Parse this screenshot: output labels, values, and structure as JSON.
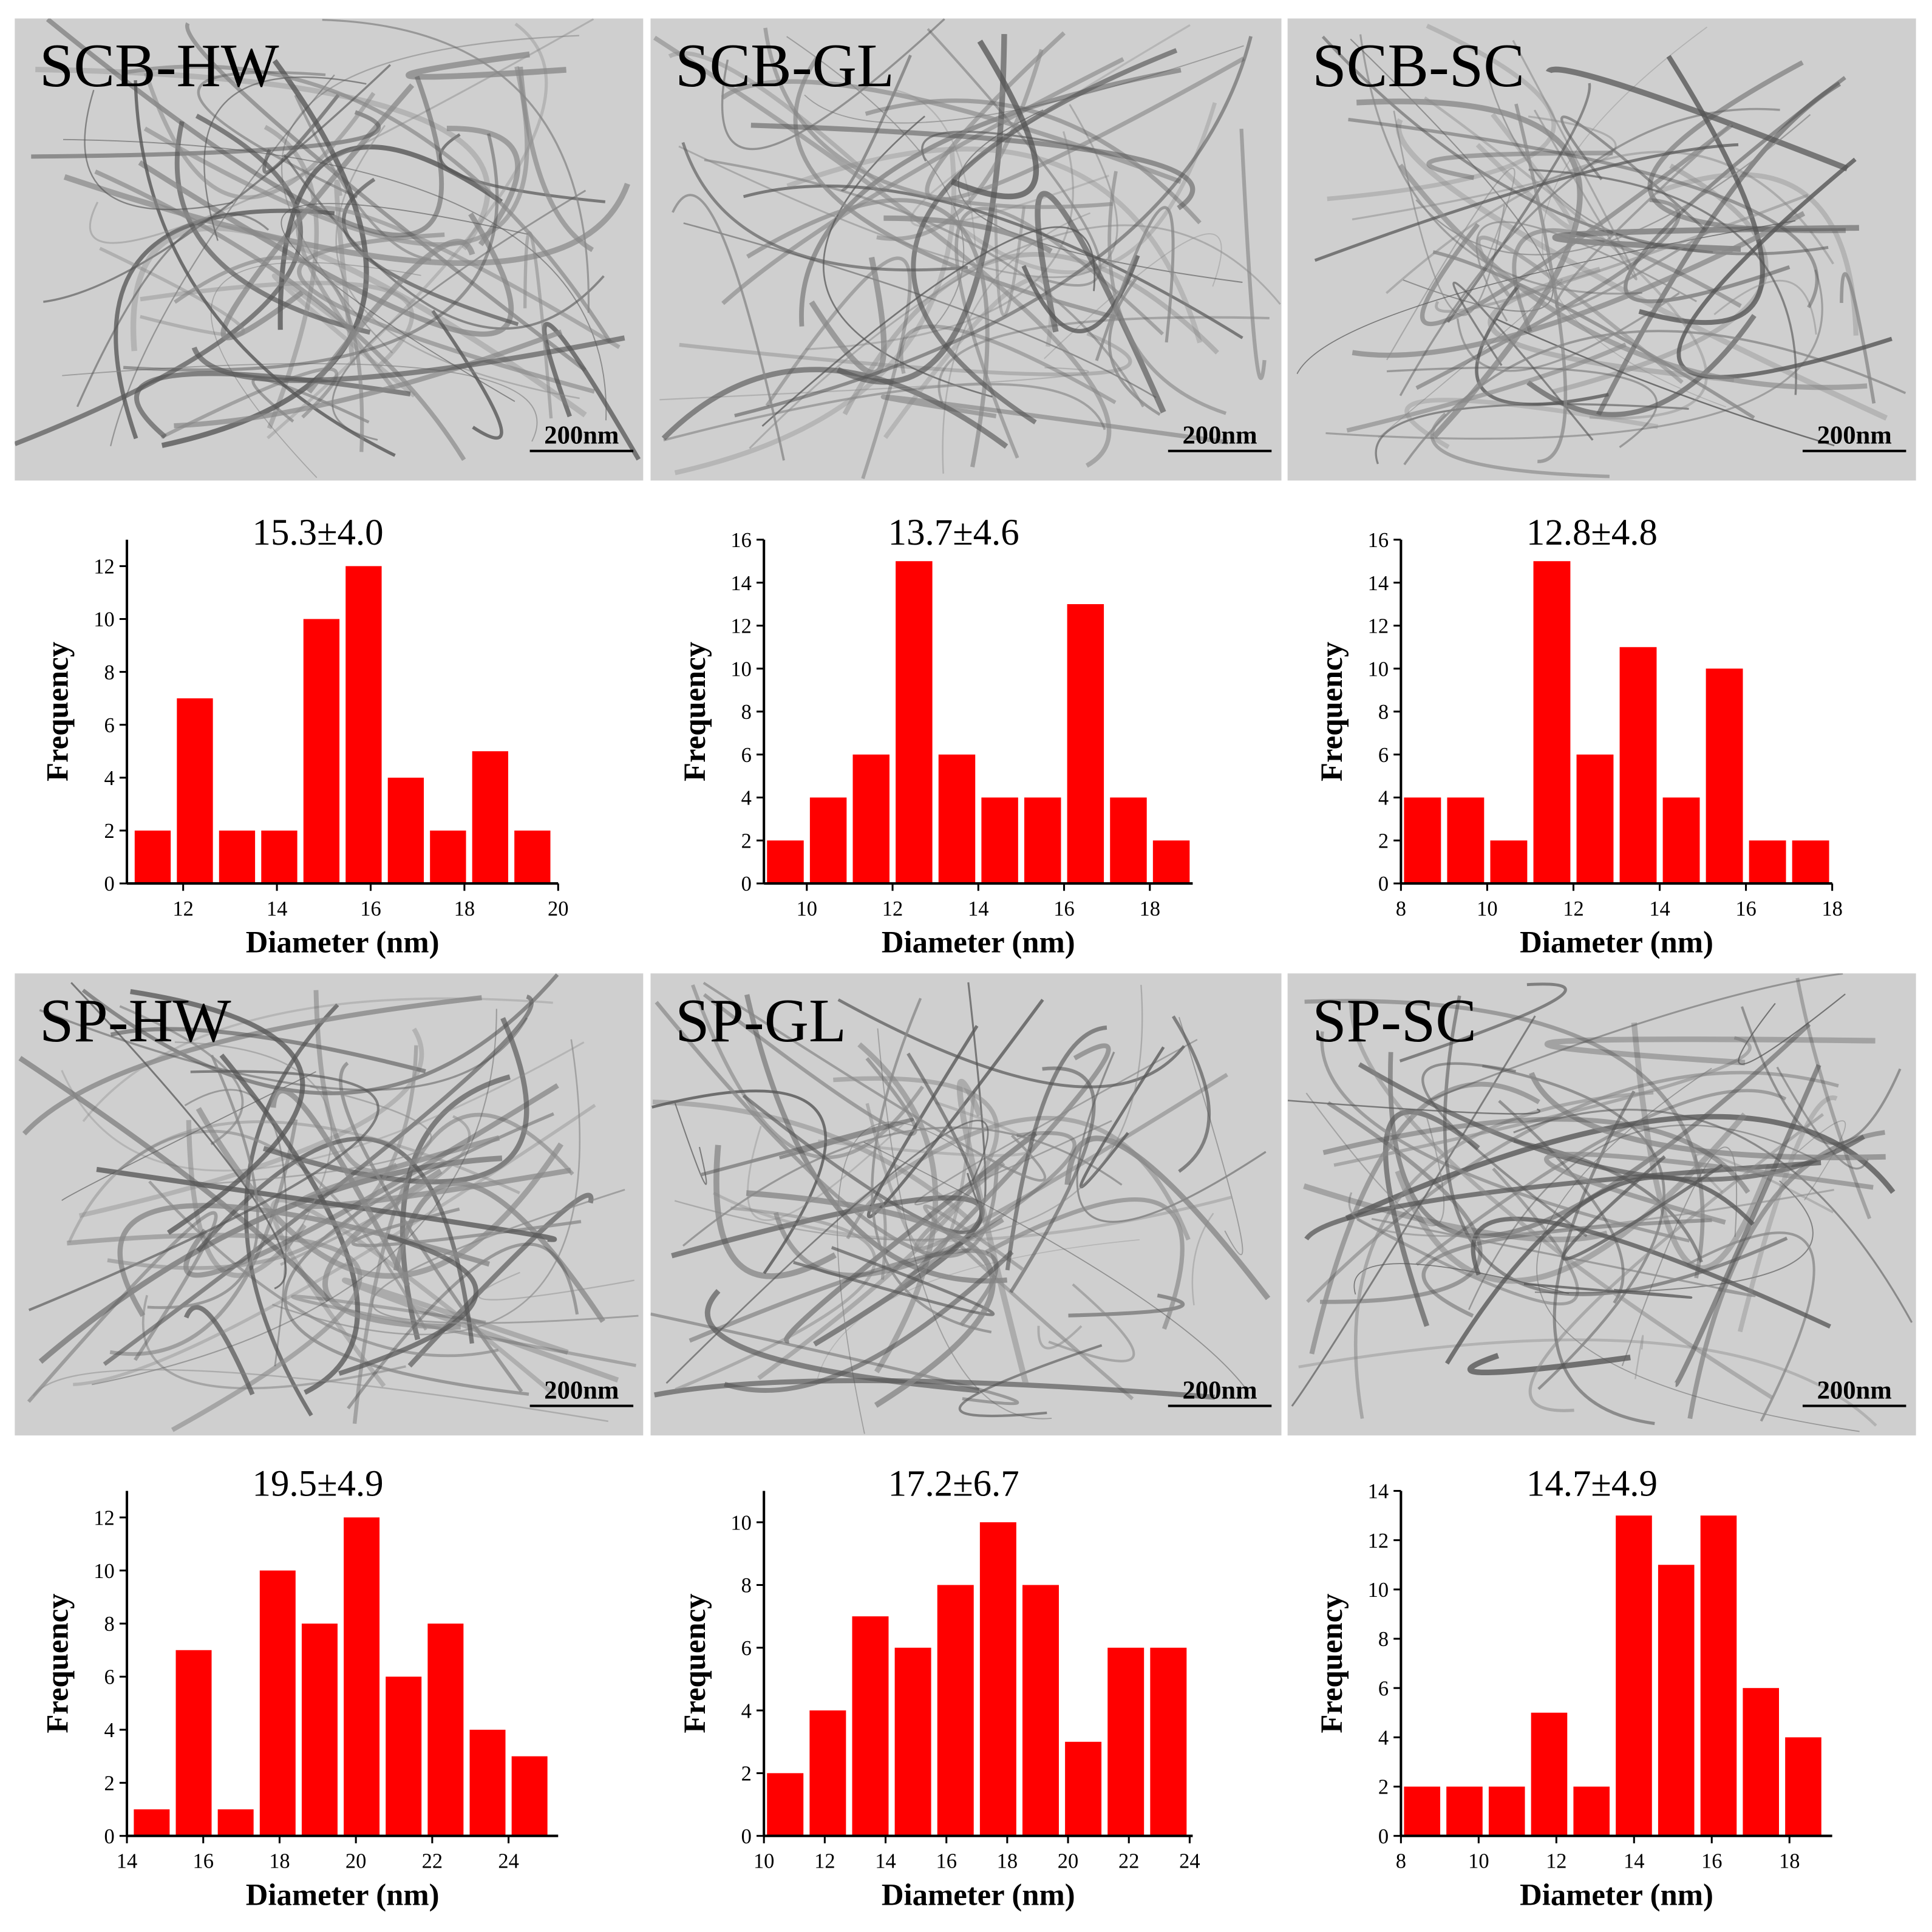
{
  "panels": [
    {
      "label": "SCB-HW",
      "scale_bar": "200nm"
    },
    {
      "label": "SCB-GL",
      "scale_bar": "200nm"
    },
    {
      "label": "SCB-SC",
      "scale_bar": "200nm"
    },
    {
      "label": "SP-HW",
      "scale_bar": "200nm"
    },
    {
      "label": "SP-GL",
      "scale_bar": "200nm"
    },
    {
      "label": "SP-SC",
      "scale_bar": "200nm"
    }
  ],
  "chart_data": [
    {
      "type": "histogram",
      "title": "15.3±4.0",
      "xlabel": "Diameter (nm)",
      "ylabel": "Frequency",
      "color": "#ff0000",
      "bins": [
        10.9,
        11.8,
        12.7,
        13.6,
        14.5,
        15.4,
        16.3,
        17.2,
        18.1,
        19.0,
        19.9
      ],
      "values": [
        2,
        7,
        2,
        2,
        10,
        12,
        4,
        2,
        5,
        2
      ],
      "xlim": [
        10.8,
        20
      ],
      "xticks": [
        12,
        14,
        16,
        18,
        20
      ],
      "ylim": [
        0,
        13
      ],
      "yticks": [
        0,
        2,
        4,
        6,
        8,
        10,
        12
      ]
    },
    {
      "type": "histogram",
      "title": "13.7±4.6",
      "xlabel": "Diameter (nm)",
      "ylabel": "Frequency",
      "color": "#ff0000",
      "bins": [
        9,
        10,
        11,
        12,
        13,
        14,
        15,
        16,
        17,
        18,
        19
      ],
      "values": [
        2,
        4,
        6,
        15,
        6,
        4,
        4,
        13,
        4,
        2
      ],
      "xlim": [
        9,
        19
      ],
      "xticks": [
        10,
        12,
        14,
        16,
        18
      ],
      "ylim": [
        0,
        16
      ],
      "yticks": [
        0,
        2,
        4,
        6,
        8,
        10,
        12,
        14,
        16
      ]
    },
    {
      "type": "histogram",
      "title": "12.8±4.8",
      "xlabel": "Diameter (nm)",
      "ylabel": "Frequency",
      "color": "#ff0000",
      "bins": [
        8,
        9,
        10,
        11,
        12,
        13,
        14,
        15,
        16,
        17,
        18
      ],
      "values": [
        4,
        4,
        2,
        15,
        6,
        11,
        4,
        10,
        2,
        2
      ],
      "xlim": [
        8,
        18
      ],
      "xticks": [
        8,
        10,
        12,
        14,
        16,
        18
      ],
      "ylim": [
        0,
        16
      ],
      "yticks": [
        0,
        2,
        4,
        6,
        8,
        10,
        12,
        14,
        16
      ]
    },
    {
      "type": "histogram",
      "title": "19.5±4.9",
      "xlabel": "Diameter (nm)",
      "ylabel": "Frequency",
      "color": "#ff0000",
      "bins": [
        14.1,
        15.2,
        16.3,
        17.4,
        18.5,
        19.6,
        20.7,
        21.8,
        22.9,
        24.0,
        25.1
      ],
      "values": [
        1,
        7,
        1,
        10,
        8,
        12,
        6,
        8,
        4,
        3
      ],
      "xlim": [
        14,
        25.3
      ],
      "xticks": [
        14,
        16,
        18,
        20,
        22,
        24
      ],
      "ylim": [
        0,
        13
      ],
      "yticks": [
        0,
        2,
        4,
        6,
        8,
        10,
        12
      ]
    },
    {
      "type": "histogram",
      "title": "17.2±6.7",
      "xlabel": "Diameter (nm)",
      "ylabel": "Frequency",
      "color": "#ff0000",
      "bins": [
        10,
        11.4,
        12.8,
        14.2,
        15.6,
        17,
        18.4,
        19.8,
        21.2,
        22.6,
        24
      ],
      "values": [
        2,
        4,
        7,
        6,
        8,
        10,
        8,
        3,
        6,
        6
      ],
      "xlim": [
        10,
        24.1
      ],
      "xticks": [
        10,
        12,
        14,
        16,
        18,
        20,
        22,
        24
      ],
      "ylim": [
        0,
        11
      ],
      "yticks": [
        0,
        2,
        4,
        6,
        8,
        10
      ]
    },
    {
      "type": "histogram",
      "title": "14.7±4.9",
      "xlabel": "Diameter (nm)",
      "ylabel": "Frequency",
      "color": "#ff0000",
      "bins": [
        8,
        9.09,
        10.18,
        11.27,
        12.36,
        13.45,
        14.54,
        15.63,
        16.72,
        17.81,
        18.9
      ],
      "values": [
        2,
        2,
        2,
        5,
        2,
        13,
        11,
        13,
        6,
        4
      ],
      "xlim": [
        8,
        19.1
      ],
      "xticks": [
        8,
        10,
        12,
        14,
        16,
        18
      ],
      "ylim": [
        0,
        14
      ],
      "yticks": [
        0,
        2,
        4,
        6,
        8,
        10,
        12,
        14
      ]
    }
  ]
}
